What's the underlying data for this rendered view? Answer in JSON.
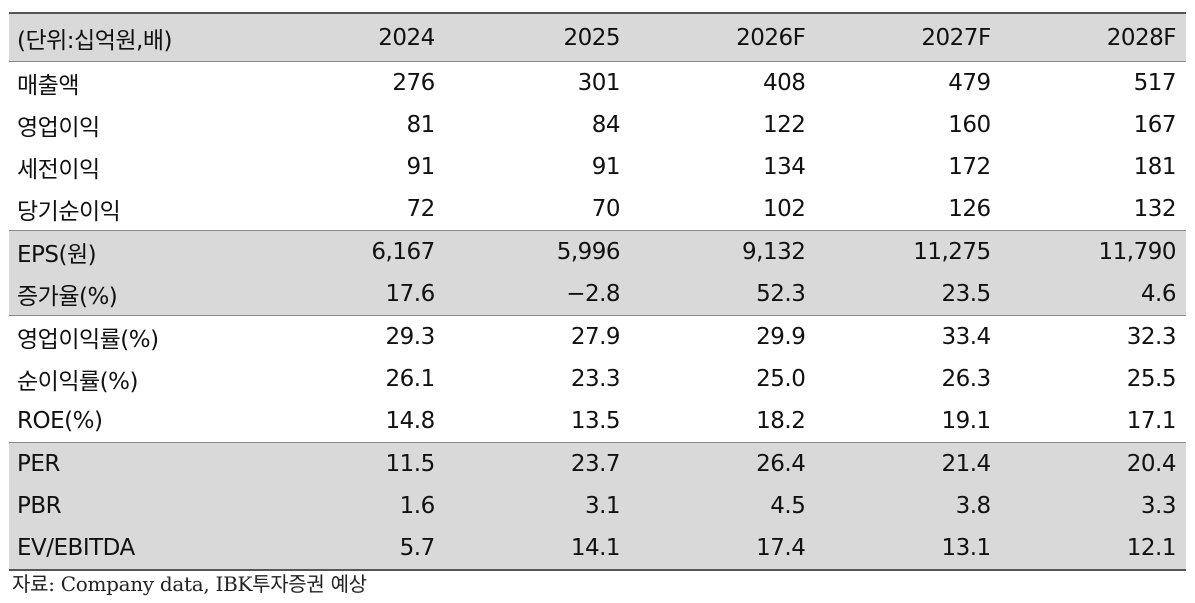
{
  "header": {
    "unit_label": "(단위:십억원,배)",
    "years": [
      "2024",
      "2025",
      "2026F",
      "2027F",
      "2028F"
    ]
  },
  "rows": [
    {
      "label": "매출액",
      "values": [
        "276",
        "301",
        "408",
        "479",
        "517"
      ]
    },
    {
      "label": "영업이익",
      "values": [
        "81",
        "84",
        "122",
        "160",
        "167"
      ]
    },
    {
      "label": "세전이익",
      "values": [
        "91",
        "91",
        "134",
        "172",
        "181"
      ]
    },
    {
      "label": "당기순이익",
      "values": [
        "72",
        "70",
        "102",
        "126",
        "132"
      ]
    },
    {
      "label": "EPS(원)",
      "values": [
        "6,167",
        "5,996",
        "9,132",
        "11,275",
        "11,790"
      ]
    },
    {
      "label": "증가율(%)",
      "values": [
        "17.6",
        "−2.8",
        "52.3",
        "23.5",
        "4.6"
      ]
    },
    {
      "label": "영업이익률(%)",
      "values": [
        "29.3",
        "27.9",
        "29.9",
        "33.4",
        "32.3"
      ]
    },
    {
      "label": "순이익률(%)",
      "values": [
        "26.1",
        "23.3",
        "25.0",
        "26.3",
        "25.5"
      ]
    },
    {
      "label": "ROE(%)",
      "values": [
        "14.8",
        "13.5",
        "18.2",
        "19.1",
        "17.1"
      ]
    },
    {
      "label": "PER",
      "values": [
        "11.5",
        "23.7",
        "26.4",
        "21.4",
        "20.4"
      ]
    },
    {
      "label": "PBR",
      "values": [
        "1.6",
        "3.1",
        "4.5",
        "3.8",
        "3.3"
      ]
    },
    {
      "label": "EV/EBITDA",
      "values": [
        "5.7",
        "14.1",
        "17.4",
        "13.1",
        "12.1"
      ]
    }
  ],
  "colors": {
    "shade": "#d9d9d9",
    "rule": "#555555"
  },
  "source": "자료: Company data, IBK투자증권 예상"
}
